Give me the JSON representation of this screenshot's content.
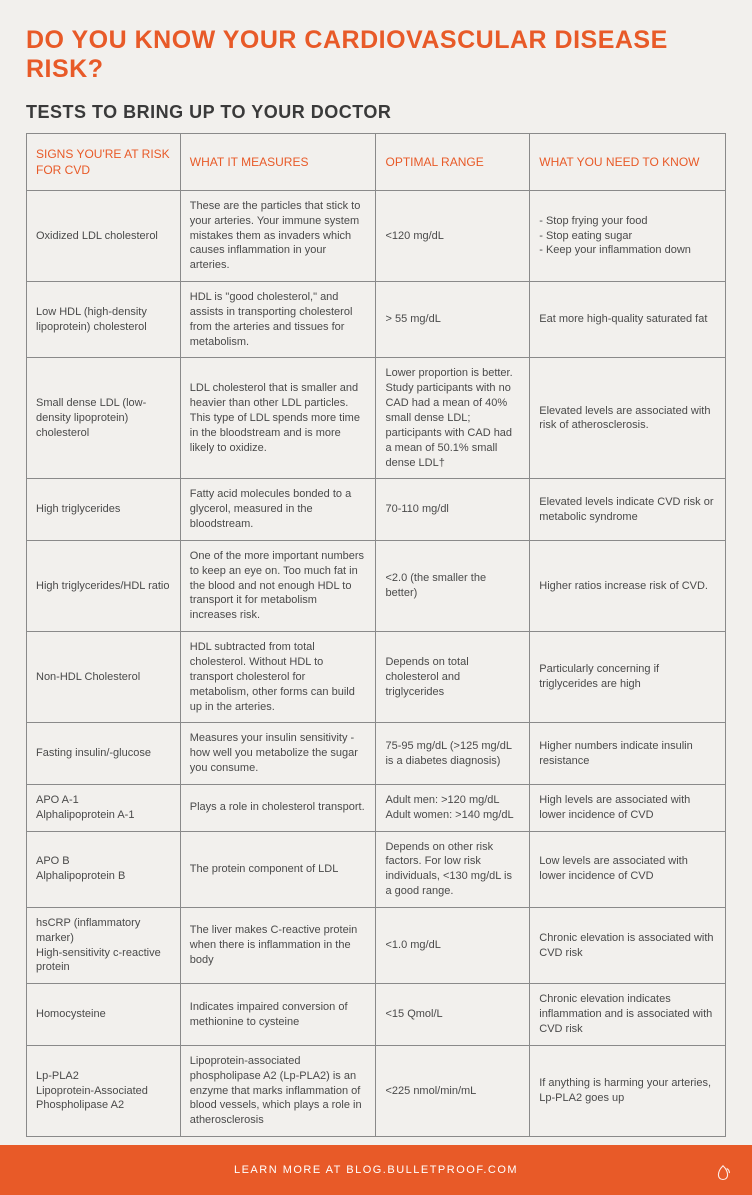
{
  "colors": {
    "accent": "#e85a28",
    "background": "#f2f0ed",
    "text": "#4a4a4a",
    "heading": "#3a3a3a",
    "border": "#8a8a8a",
    "footer_text": "#ffffff"
  },
  "typography": {
    "font_family": "Helvetica Neue, Arial, sans-serif",
    "title_fontsize": 25,
    "subtitle_fontsize": 18,
    "header_fontsize": 12,
    "cell_fontsize": 11
  },
  "title": "DO YOU KNOW YOUR CARDIOVASCULAR DISEASE RISK?",
  "subtitle": "TESTS TO BRING UP TO YOUR DOCTOR",
  "table": {
    "type": "table",
    "columns": [
      "SIGNS YOU'RE AT RISK FOR CVD",
      "WHAT IT MEASURES",
      "OPTIMAL RANGE",
      "WHAT YOU NEED TO KNOW"
    ],
    "column_widths_pct": [
      22,
      28,
      22,
      28
    ],
    "rows": [
      {
        "sign": "Oxidized LDL cholesterol",
        "measures": "These are the particles that stick to your arteries. Your immune system mistakes them as invaders which causes inflammation in your arteries.",
        "range": "<120 mg/dL",
        "know": "- Stop frying your food\n- Stop eating sugar\n- Keep your inflammation down"
      },
      {
        "sign": "Low HDL (high-density lipoprotein) cholesterol",
        "measures": "HDL is \"good cholesterol,\" and assists in transporting cholesterol from the arteries and tissues for metabolism.",
        "range": "> 55 mg/dL",
        "know": "Eat more high-quality saturated fat"
      },
      {
        "sign": "Small dense LDL (low-density lipoprotein) cholesterol",
        "measures": "LDL cholesterol that is smaller and heavier than other LDL particles.  This type of LDL spends more time in the bloodstream and is more likely to oxidize.",
        "range": "Lower proportion is better. Study participants with no CAD had a mean of 40% small dense LDL; participants with CAD had a mean of 50.1% small dense LDL†",
        "know": "Elevated levels are associated with risk of atherosclerosis."
      },
      {
        "sign": "High triglycerides",
        "measures": "Fatty acid molecules bonded to a glycerol, measured in the bloodstream.",
        "range": "70-110 mg/dl",
        "know": "Elevated levels indicate CVD risk or metabolic syndrome"
      },
      {
        "sign": "High triglycerides/HDL ratio",
        "measures": "One of the more important numbers to keep an eye on. Too much fat in the blood and not enough HDL to transport it for metabolism increases risk.",
        "range": "<2.0 (the smaller the better)",
        "know": "Higher ratios increase risk of CVD."
      },
      {
        "sign": "Non-HDL Cholesterol",
        "measures": "HDL subtracted from total cholesterol. Without HDL to transport cholesterol for metabolism, other forms can build up in the arteries.",
        "range": "Depends on total cholesterol and triglycerides",
        "know": "Particularly concerning if triglycerides are high"
      },
      {
        "sign": "Fasting insulin/-glucose",
        "measures": "Measures your insulin sensitivity - how well you metabolize the sugar you consume.",
        "range": "75-95 mg/dL (>125 mg/dL is a diabetes diagnosis)",
        "know": "Higher numbers indicate insulin resistance"
      },
      {
        "sign": "APO A-1\nAlphalipoprotein A-1",
        "measures": "Plays a role in cholesterol transport.",
        "range": "Adult men: >120 mg/dL\nAdult women: >140 mg/dL",
        "know": "High levels are associated with lower incidence of CVD"
      },
      {
        "sign": "APO B\nAlphalipoprotein B",
        "measures": "The protein component of LDL",
        "range": "Depends on other risk factors. For low risk individuals, <130 mg/dL is a good range.",
        "know": "Low levels are associated with lower incidence of CVD"
      },
      {
        "sign": "hsCRP (inflammatory marker)\nHigh-sensitivity c-reactive protein",
        "measures": "The liver makes C-reactive protein when there is inflammation in the body",
        "range": "<1.0 mg/dL",
        "know": "Chronic elevation is associated with CVD risk"
      },
      {
        "sign": "Homocysteine",
        "measures": "Indicates impaired conversion of methionine to cysteine",
        "range": "<15 Qmol/L",
        "know": "Chronic elevation indicates inflammation and is associated with CVD risk"
      },
      {
        "sign": "Lp-PLA2\nLipoprotein-Associated Phospholipase A2",
        "measures": "Lipoprotein-associated phospholipase A2 (Lp-PLA2) is an enzyme that marks inflammation of blood vessels, which plays a role in atherosclerosis",
        "range": "<225 nmol/min/mL",
        "know": "If anything is harming your arteries, Lp-PLA2 goes up"
      }
    ]
  },
  "footer": {
    "text": "LEARN MORE AT BLOG.BULLETPROOF.COM",
    "icon": "bulletproof-logo-icon"
  }
}
